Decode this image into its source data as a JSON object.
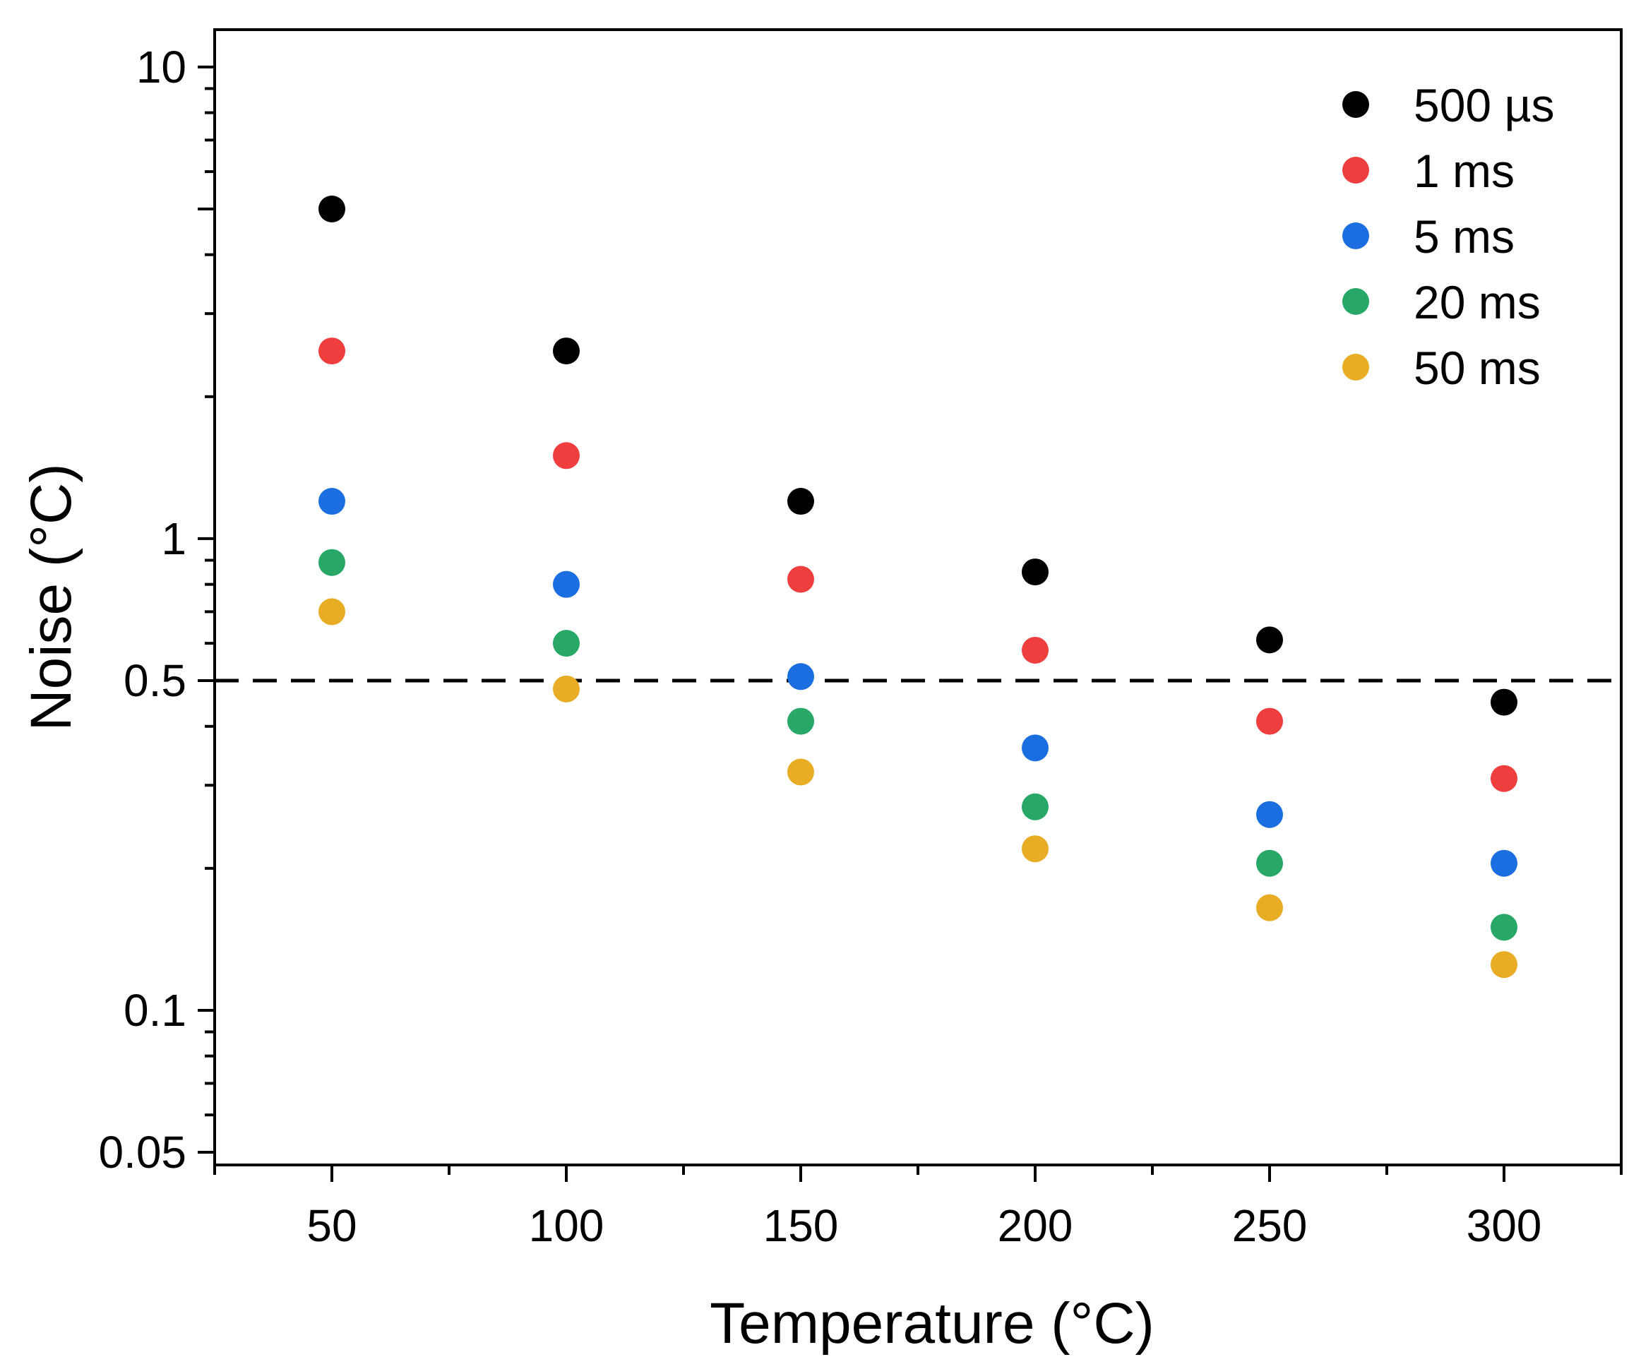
{
  "chart_data": {
    "type": "scatter",
    "title": "",
    "xlabel": "Temperature (°C)",
    "ylabel": "Noise (°C)",
    "xlim": [
      25,
      325
    ],
    "ylim": [
      0.047,
      12
    ],
    "yscale": "log",
    "x": [
      50,
      100,
      150,
      200,
      250,
      300
    ],
    "x_tick_labels": [
      "50",
      "100",
      "150",
      "200",
      "250",
      "300"
    ],
    "y_ticks": [
      10,
      1,
      0.5,
      0.1,
      0.05
    ],
    "y_tick_labels": [
      "10",
      "1",
      "0.5",
      "0.1",
      "0.05"
    ],
    "reference_line": {
      "y": 0.5,
      "style": "dashed",
      "color": "#000000"
    },
    "legend_position": "top-right",
    "grid": false,
    "series": [
      {
        "name": "500 µs",
        "color": "#000000",
        "values": [
          5.0,
          2.5,
          1.2,
          0.85,
          0.61,
          0.45
        ]
      },
      {
        "name": "1 ms",
        "color": "#ef3e3e",
        "values": [
          2.5,
          1.5,
          0.82,
          0.58,
          0.41,
          0.31
        ]
      },
      {
        "name": "5 ms",
        "color": "#1a6ee0",
        "values": [
          1.2,
          0.8,
          0.51,
          0.36,
          0.26,
          0.205
        ]
      },
      {
        "name": "20 ms",
        "color": "#27a866",
        "values": [
          0.89,
          0.6,
          0.41,
          0.27,
          0.205,
          0.15
        ]
      },
      {
        "name": "50 ms",
        "color": "#e8ad25",
        "values": [
          0.7,
          0.48,
          0.32,
          0.22,
          0.165,
          0.125
        ]
      }
    ]
  }
}
